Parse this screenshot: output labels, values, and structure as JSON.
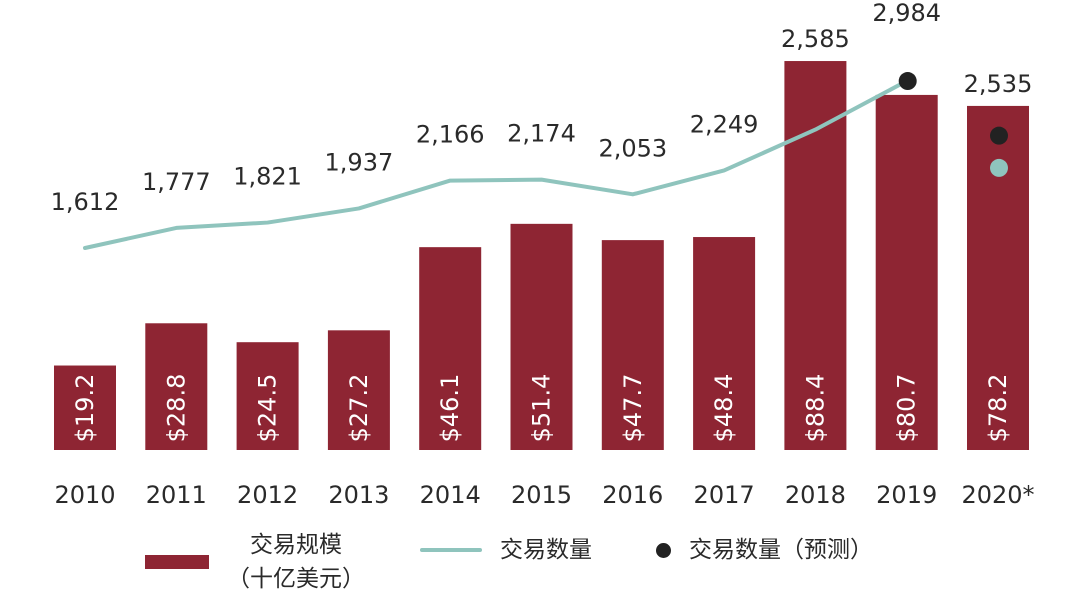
{
  "chart_data": {
    "type": "bar",
    "categories": [
      "2010",
      "2011",
      "2012",
      "2013",
      "2014",
      "2015",
      "2016",
      "2017",
      "2018",
      "2019",
      "2020*"
    ],
    "series": [
      {
        "name": "交易规模（十亿美元）",
        "type": "bar",
        "values": [
          19.2,
          28.8,
          24.5,
          27.2,
          46.1,
          51.4,
          47.7,
          48.4,
          88.4,
          80.7,
          78.2
        ],
        "labels": [
          "$19.2",
          "$28.8",
          "$24.5",
          "$27.2",
          "$46.1",
          "$51.4",
          "$47.7",
          "$48.4",
          "$88.4",
          "$80.7",
          "$78.2"
        ]
      },
      {
        "name": "交易数量",
        "type": "line",
        "values": [
          1612,
          1777,
          1821,
          1937,
          2166,
          2174,
          2053,
          2249,
          2585,
          2984,
          null
        ],
        "labels": [
          "1,612",
          "1,777",
          "1,821",
          "1,937",
          "2,166",
          "2,174",
          "2,053",
          "2,249",
          "2,585",
          "2,984",
          "2,535"
        ]
      }
    ],
    "markers": [
      {
        "name": "交易数量（预测）",
        "category": "2019",
        "value": 2984,
        "color": "#222222"
      },
      {
        "name": "交易数量（预测）",
        "category": "2020*",
        "value": 2535,
        "color": "#222222"
      },
      {
        "category": "2020*",
        "value": 2270,
        "color": "#8fc4bd"
      }
    ],
    "colors": {
      "bar": "#8e2533",
      "line": "#8fc4bd",
      "forecast": "#222222",
      "text": "#2a2a2a"
    },
    "grid": false,
    "legend_position": "bottom"
  },
  "legend": {
    "bar_label_line1": "交易规模",
    "bar_label_line2": "（十亿美元）",
    "line_label": "交易数量",
    "forecast_label": "交易数量（预测）"
  }
}
